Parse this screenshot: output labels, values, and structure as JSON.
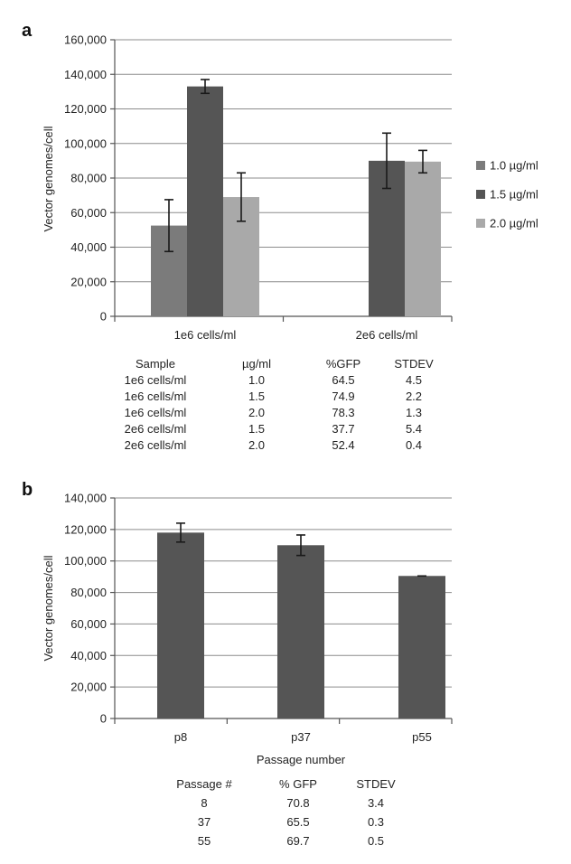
{
  "panels": [
    {
      "letter": "a",
      "chart_data": {
        "type": "bar",
        "categories": [
          "1e6 cells/ml",
          "2e6 cells/ml"
        ],
        "series": [
          {
            "name": "1.0 µg/ml",
            "color": "#7b7b7b",
            "values": [
              52500,
              null
            ],
            "errors": [
              15000,
              null
            ]
          },
          {
            "name": "1.5 µg/ml",
            "color": "#555555",
            "values": [
              133000,
              90000
            ],
            "errors": [
              4000,
              16000
            ]
          },
          {
            "name": "2.0 µg/ml",
            "color": "#a9a9a9",
            "values": [
              69000,
              89500
            ],
            "errors": [
              14000,
              6500
            ]
          }
        ],
        "ylabel": "Vector genomes/cell",
        "xlabel": "",
        "ylim": [
          0,
          160000
        ],
        "yticks": [
          "0",
          "20,000",
          "40,000",
          "60,000",
          "80,000",
          "100,000",
          "120,000",
          "140,000",
          "160,000"
        ],
        "grid": true,
        "legend": "right"
      },
      "table": {
        "headers": [
          "Sample",
          "µg/ml",
          "%GFP",
          "STDEV"
        ],
        "rows": [
          [
            "1e6 cells/ml",
            "1.0",
            "64.5",
            "4.5"
          ],
          [
            "1e6 cells/ml",
            "1.5",
            "74.9",
            "2.2"
          ],
          [
            "1e6 cells/ml",
            "2.0",
            "78.3",
            "1.3"
          ],
          [
            "2e6 cells/ml",
            "1.5",
            "37.7",
            "5.4"
          ],
          [
            "2e6 cells/ml",
            "2.0",
            "52.4",
            "0.4"
          ]
        ]
      }
    },
    {
      "letter": "b",
      "chart_data": {
        "type": "bar",
        "categories": [
          "p8",
          "p37",
          "p55"
        ],
        "series": [
          {
            "color": "#555555",
            "values": [
              118000,
              110000,
              90500
            ],
            "errors": [
              6000,
              6500,
              0
            ]
          }
        ],
        "ylabel": "Vector genomes/cell",
        "xlabel": "Passage number",
        "ylim": [
          0,
          140000
        ],
        "yticks": [
          "0",
          "20,000",
          "40,000",
          "60,000",
          "80,000",
          "100,000",
          "120,000",
          "140,000"
        ],
        "grid": true,
        "legend": "none"
      },
      "table": {
        "headers": [
          "Passage #",
          "% GFP",
          "STDEV"
        ],
        "rows": [
          [
            "8",
            "70.8",
            "3.4"
          ],
          [
            "37",
            "65.5",
            "0.3"
          ],
          [
            "55",
            "69.7",
            "0.5"
          ]
        ]
      }
    }
  ]
}
